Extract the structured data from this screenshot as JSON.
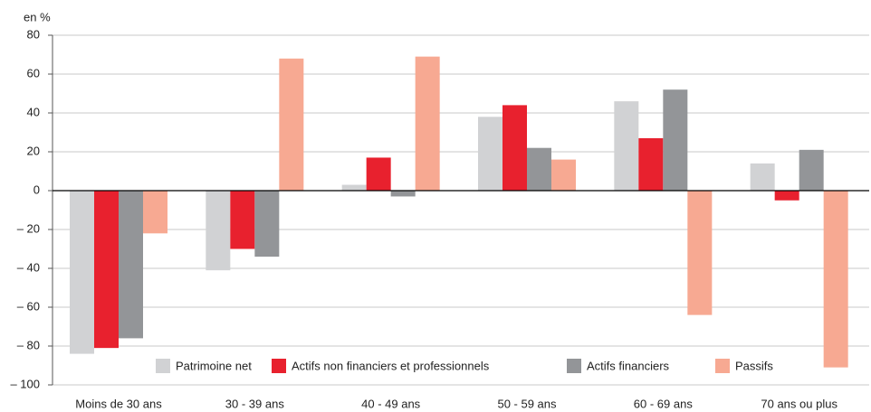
{
  "chart_data": {
    "type": "bar",
    "y_label": "en %",
    "categories": [
      "Moins de 30 ans",
      "30 - 39 ans",
      "40 - 49 ans",
      "50 - 59 ans",
      "60 - 69 ans",
      "70 ans ou plus"
    ],
    "series": [
      {
        "name": "Patrimoine net",
        "color": "#d1d2d4",
        "values": [
          -84,
          -41,
          3,
          38,
          46,
          14
        ]
      },
      {
        "name": "Actifs non financiers et professionnels",
        "color": "#e8212e",
        "values": [
          -81,
          -30,
          17,
          44,
          27,
          -5
        ]
      },
      {
        "name": "Actifs financiers",
        "color": "#939598",
        "values": [
          -76,
          -34,
          -3,
          22,
          52,
          21
        ]
      },
      {
        "name": "Passifs",
        "color": "#f7a992",
        "values": [
          -22,
          68,
          69,
          16,
          -64,
          -91
        ]
      }
    ],
    "ylim": [
      -100,
      80
    ],
    "yticks": [
      {
        "value": -100,
        "label": "– 100"
      },
      {
        "value": -80,
        "label": "– 80"
      },
      {
        "value": -60,
        "label": "– 60"
      },
      {
        "value": -40,
        "label": "– 40"
      },
      {
        "value": -20,
        "label": "– 20"
      },
      0,
      20,
      40,
      60,
      80
    ],
    "grid": true
  }
}
